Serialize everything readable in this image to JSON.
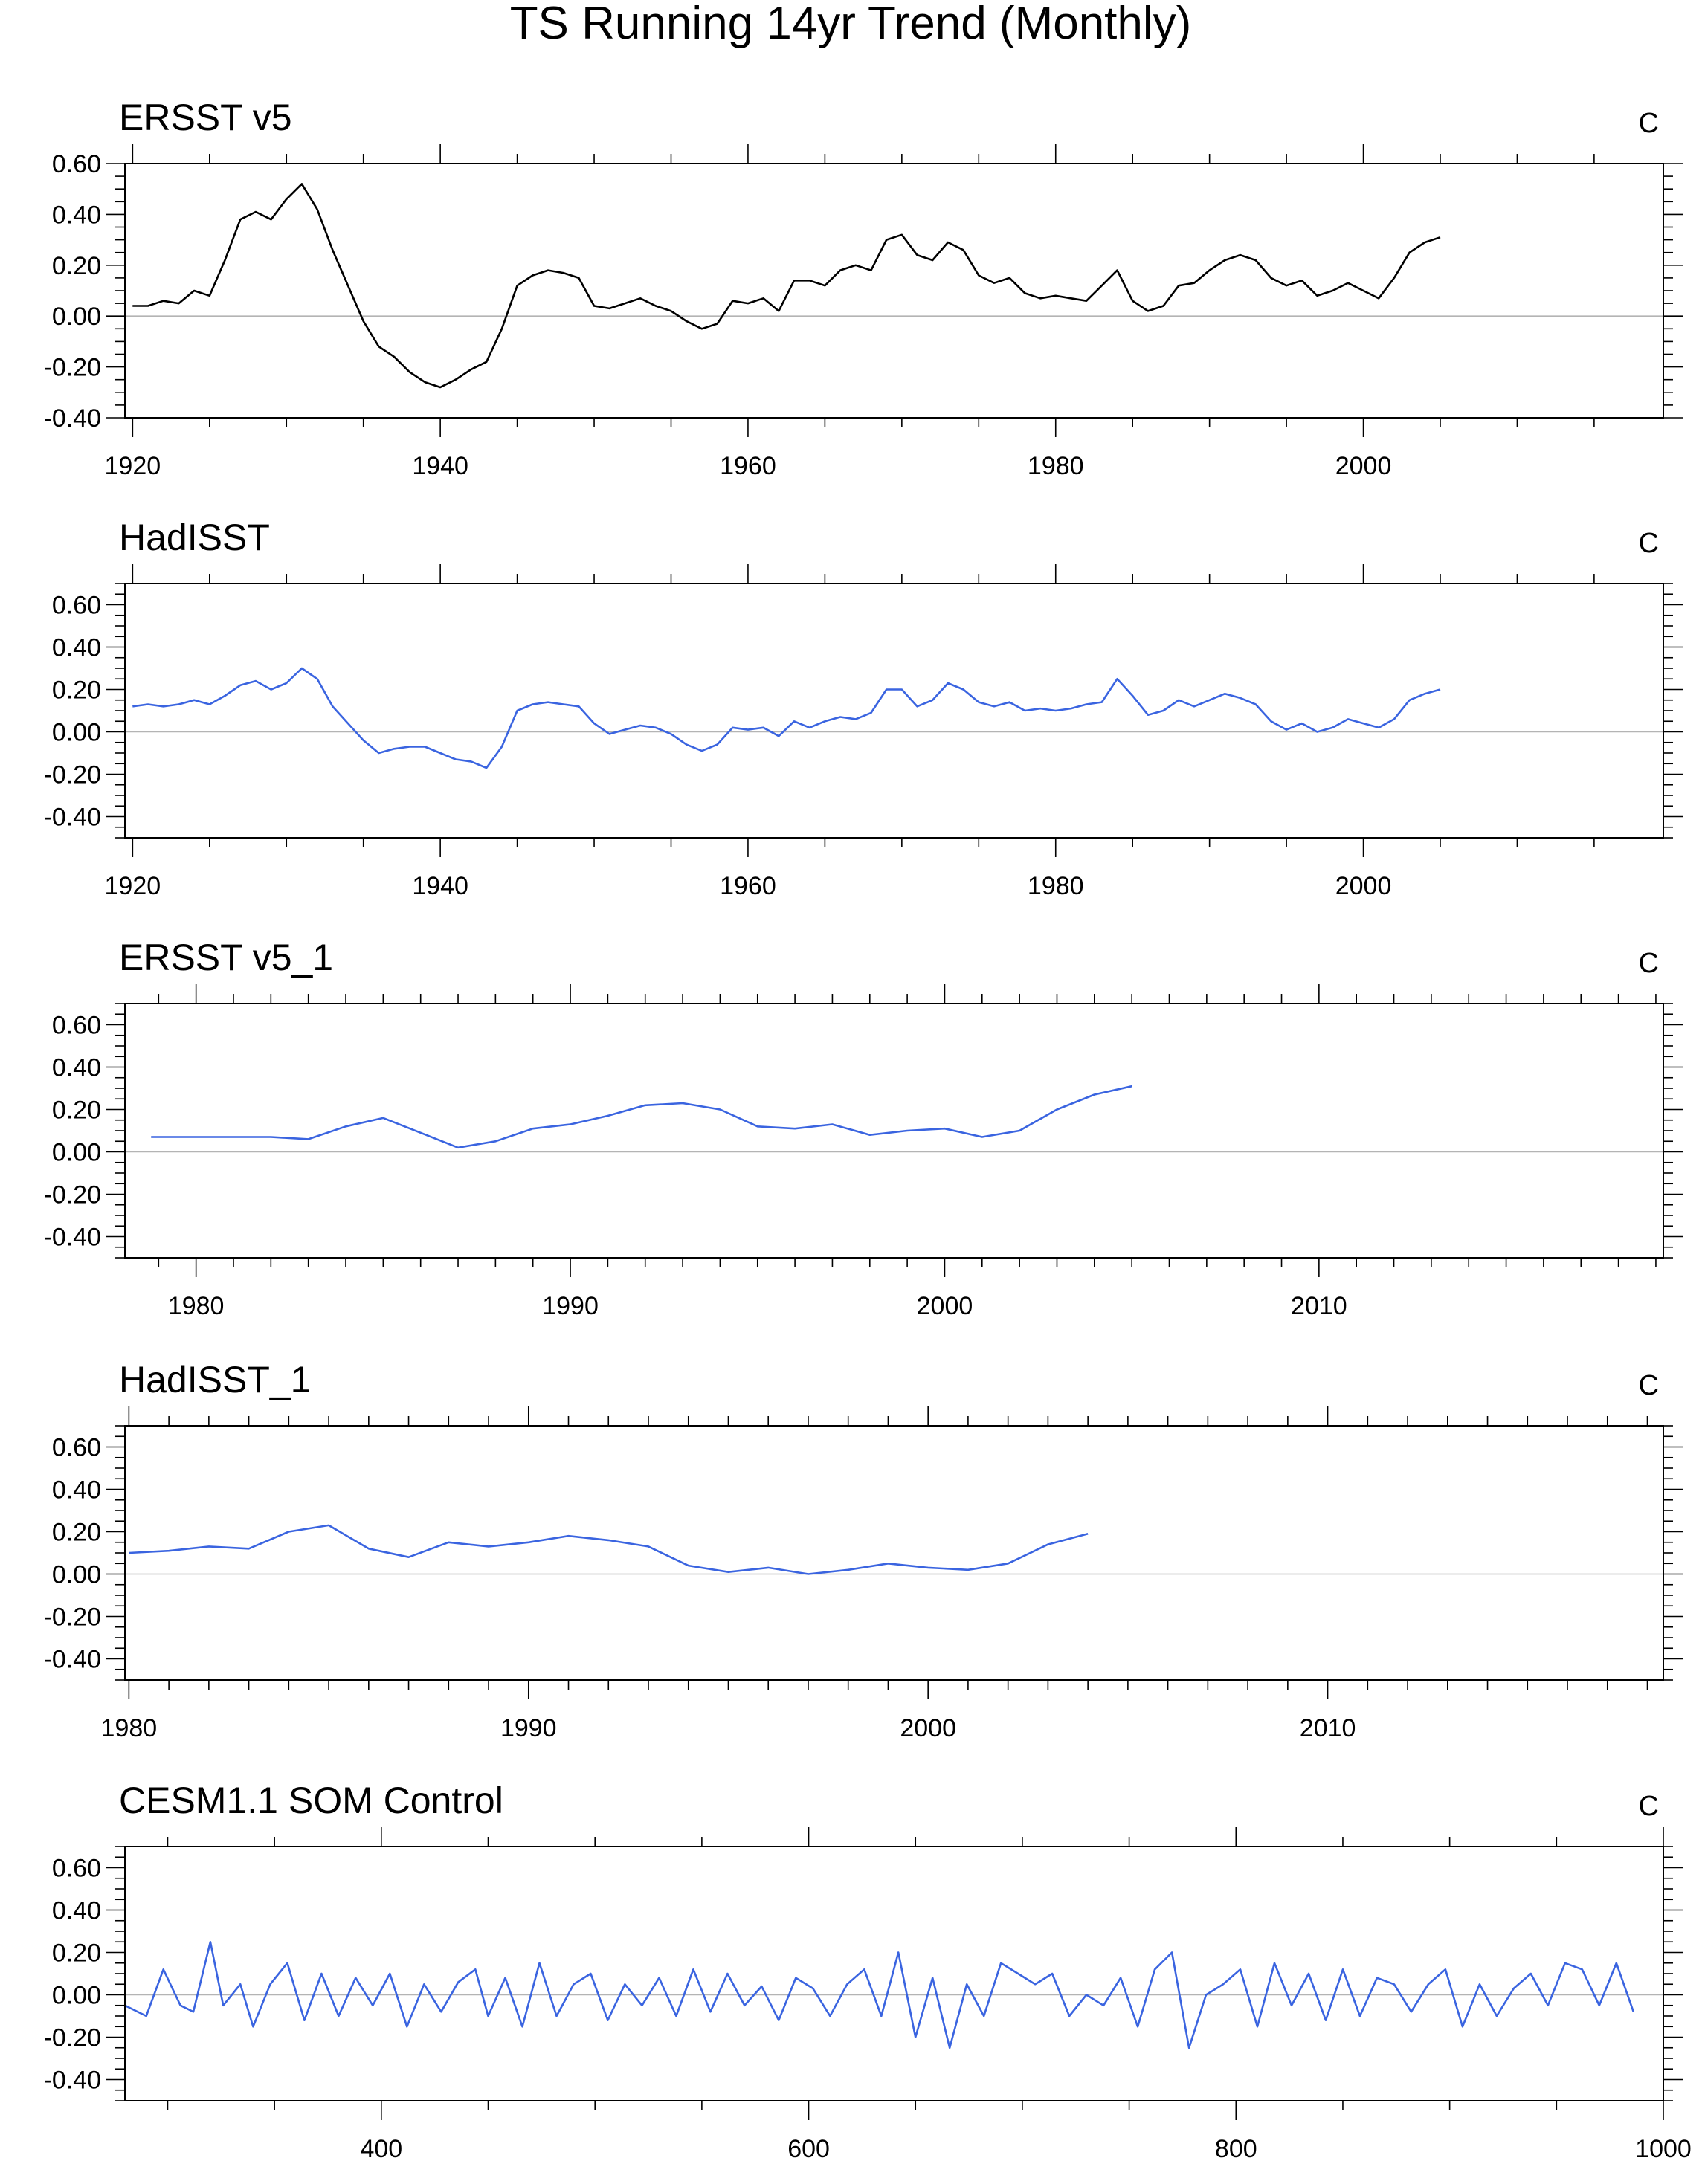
{
  "figure": {
    "title": "TS Running 14yr Trend (Monthly)"
  },
  "chart_data": [
    {
      "type": "line",
      "title": "ERSST v5",
      "units": "C",
      "color": "#000000",
      "xlim": [
        1919.5,
        2019.5
      ],
      "ylim": [
        -0.4,
        0.6
      ],
      "xticks": [
        1920,
        1940,
        1960,
        1980,
        2000
      ],
      "xtick_labels": [
        "1920",
        "1940",
        "1960",
        "1980",
        "2000"
      ],
      "xminor_step": 5,
      "yticks": [
        0.6,
        0.4,
        0.2,
        0.0,
        -0.2,
        -0.4
      ],
      "ytick_labels": [
        "0.60",
        "0.40",
        "0.20",
        "0.00",
        "-0.20",
        "-0.40"
      ],
      "series": [
        {
          "x": [
            1920,
            1921,
            1922,
            1923,
            1924,
            1925,
            1926,
            1927,
            1928,
            1929,
            1930,
            1931,
            1932,
            1933,
            1934,
            1935,
            1936,
            1937,
            1938,
            1939,
            1940,
            1941,
            1942,
            1943,
            1944,
            1945,
            1946,
            1947,
            1948,
            1949,
            1950,
            1951,
            1952,
            1953,
            1954,
            1955,
            1956,
            1957,
            1958,
            1959,
            1960,
            1961,
            1962,
            1963,
            1964,
            1965,
            1966,
            1967,
            1968,
            1969,
            1970,
            1971,
            1972,
            1973,
            1974,
            1975,
            1976,
            1977,
            1978,
            1979,
            1980,
            1981,
            1982,
            1983,
            1984,
            1985,
            1986,
            1987,
            1988,
            1989,
            1990,
            1991,
            1992,
            1993,
            1994,
            1995,
            1996,
            1997,
            1998,
            1999,
            2000,
            2001,
            2002,
            2003,
            2004,
            2005
          ],
          "y": [
            0.04,
            0.04,
            0.06,
            0.05,
            0.1,
            0.08,
            0.22,
            0.38,
            0.41,
            0.38,
            0.46,
            0.52,
            0.42,
            0.26,
            0.12,
            -0.02,
            -0.12,
            -0.16,
            -0.22,
            -0.26,
            -0.28,
            -0.25,
            -0.21,
            -0.18,
            -0.05,
            0.12,
            0.16,
            0.18,
            0.17,
            0.15,
            0.04,
            0.03,
            0.05,
            0.07,
            0.04,
            0.02,
            -0.02,
            -0.05,
            -0.03,
            0.06,
            0.05,
            0.07,
            0.02,
            0.14,
            0.14,
            0.12,
            0.18,
            0.2,
            0.18,
            0.3,
            0.32,
            0.24,
            0.22,
            0.29,
            0.26,
            0.16,
            0.13,
            0.15,
            0.09,
            0.07,
            0.08,
            0.07,
            0.06,
            0.12,
            0.18,
            0.06,
            0.02,
            0.04,
            0.12,
            0.13,
            0.18,
            0.22,
            0.24,
            0.22,
            0.15,
            0.12,
            0.14,
            0.08,
            0.1,
            0.13,
            0.1,
            0.07,
            0.15,
            0.25,
            0.29,
            0.31
          ]
        }
      ]
    },
    {
      "type": "line",
      "title": "HadISST",
      "units": "C",
      "color": "#3a64e0",
      "xlim": [
        1919.5,
        2019.5
      ],
      "ylim": [
        -0.5,
        0.7
      ],
      "xticks": [
        1920,
        1940,
        1960,
        1980,
        2000
      ],
      "xtick_labels": [
        "1920",
        "1940",
        "1960",
        "1980",
        "2000"
      ],
      "xminor_step": 5,
      "yticks": [
        0.6,
        0.4,
        0.2,
        0.0,
        -0.2,
        -0.4
      ],
      "ytick_labels": [
        "0.60",
        "0.40",
        "0.20",
        "0.00",
        "-0.20",
        "-0.40"
      ],
      "series": [
        {
          "x": [
            1920,
            1921,
            1922,
            1923,
            1924,
            1925,
            1926,
            1927,
            1928,
            1929,
            1930,
            1931,
            1932,
            1933,
            1934,
            1935,
            1936,
            1937,
            1938,
            1939,
            1940,
            1941,
            1942,
            1943,
            1944,
            1945,
            1946,
            1947,
            1948,
            1949,
            1950,
            1951,
            1952,
            1953,
            1954,
            1955,
            1956,
            1957,
            1958,
            1959,
            1960,
            1961,
            1962,
            1963,
            1964,
            1965,
            1966,
            1967,
            1968,
            1969,
            1970,
            1971,
            1972,
            1973,
            1974,
            1975,
            1976,
            1977,
            1978,
            1979,
            1980,
            1981,
            1982,
            1983,
            1984,
            1985,
            1986,
            1987,
            1988,
            1989,
            1990,
            1991,
            1992,
            1993,
            1994,
            1995,
            1996,
            1997,
            1998,
            1999,
            2000,
            2001,
            2002,
            2003,
            2004,
            2005
          ],
          "y": [
            0.12,
            0.13,
            0.12,
            0.13,
            0.15,
            0.13,
            0.17,
            0.22,
            0.24,
            0.2,
            0.23,
            0.3,
            0.25,
            0.12,
            0.04,
            -0.04,
            -0.1,
            -0.08,
            -0.07,
            -0.07,
            -0.1,
            -0.13,
            -0.14,
            -0.17,
            -0.07,
            0.1,
            0.13,
            0.14,
            0.13,
            0.12,
            0.04,
            -0.01,
            0.01,
            0.03,
            0.02,
            -0.01,
            -0.06,
            -0.09,
            -0.06,
            0.02,
            0.01,
            0.02,
            -0.02,
            0.05,
            0.02,
            0.05,
            0.07,
            0.06,
            0.09,
            0.2,
            0.2,
            0.12,
            0.15,
            0.23,
            0.2,
            0.14,
            0.12,
            0.14,
            0.1,
            0.11,
            0.1,
            0.11,
            0.13,
            0.14,
            0.25,
            0.17,
            0.08,
            0.1,
            0.15,
            0.12,
            0.15,
            0.18,
            0.16,
            0.13,
            0.05,
            0.01,
            0.04,
            0.0,
            0.02,
            0.06,
            0.04,
            0.02,
            0.06,
            0.15,
            0.18,
            0.2
          ]
        }
      ]
    },
    {
      "type": "line",
      "title": "ERSST v5_1",
      "units": "C",
      "color": "#3a64e0",
      "xlim": [
        1978.1,
        2019.2
      ],
      "ylim": [
        -0.5,
        0.7
      ],
      "xticks": [
        1980,
        1990,
        2000,
        2010
      ],
      "xtick_labels": [
        "1980",
        "1990",
        "2000",
        "2010"
      ],
      "xminor_step": 1,
      "yticks": [
        0.6,
        0.4,
        0.2,
        0.0,
        -0.2,
        -0.4
      ],
      "ytick_labels": [
        "0.60",
        "0.40",
        "0.20",
        "0.00",
        "-0.20",
        "-0.40"
      ],
      "series": [
        {
          "x": [
            1978.8,
            1980,
            1981,
            1982,
            1983,
            1984,
            1985,
            1986,
            1987,
            1988,
            1989,
            1990,
            1991,
            1992,
            1993,
            1994,
            1995,
            1996,
            1997,
            1998,
            1999,
            2000,
            2001,
            2002,
            2003,
            2004,
            2005
          ],
          "y": [
            0.07,
            0.07,
            0.07,
            0.07,
            0.06,
            0.12,
            0.16,
            0.09,
            0.02,
            0.05,
            0.11,
            0.13,
            0.17,
            0.22,
            0.23,
            0.2,
            0.12,
            0.11,
            0.13,
            0.08,
            0.1,
            0.11,
            0.07,
            0.1,
            0.2,
            0.27,
            0.31
          ]
        }
      ]
    },
    {
      "type": "line",
      "title": "HadISST_1",
      "units": "C",
      "color": "#3a64e0",
      "xlim": [
        1979.9,
        2018.4
      ],
      "ylim": [
        -0.5,
        0.7
      ],
      "xticks": [
        1980,
        1990,
        2000,
        2010
      ],
      "xtick_labels": [
        "1980",
        "1990",
        "2000",
        "2010"
      ],
      "xminor_step": 1,
      "yticks": [
        0.6,
        0.4,
        0.2,
        0.0,
        -0.2,
        -0.4
      ],
      "ytick_labels": [
        "0.60",
        "0.40",
        "0.20",
        "0.00",
        "-0.20",
        "-0.40"
      ],
      "series": [
        {
          "x": [
            1980,
            1981,
            1982,
            1983,
            1984,
            1985,
            1986,
            1987,
            1988,
            1989,
            1990,
            1991,
            1992,
            1993,
            1994,
            1995,
            1996,
            1997,
            1998,
            1999,
            2000,
            2001,
            2002,
            2003,
            2004
          ],
          "y": [
            0.1,
            0.11,
            0.13,
            0.12,
            0.2,
            0.23,
            0.12,
            0.08,
            0.15,
            0.13,
            0.15,
            0.18,
            0.16,
            0.13,
            0.04,
            0.01,
            0.03,
            0.0,
            0.02,
            0.05,
            0.03,
            0.02,
            0.05,
            0.14,
            0.19
          ]
        }
      ]
    },
    {
      "type": "line",
      "title": "CESM1.1 SOM Control",
      "units": "C",
      "color": "#3a64e0",
      "xlim": [
        280,
        1000
      ],
      "ylim": [
        -0.5,
        0.7
      ],
      "xticks": [
        400,
        600,
        800,
        1000
      ],
      "xtick_labels": [
        "400",
        "600",
        "800",
        "1000"
      ],
      "xminor_step": 50,
      "yticks": [
        0.6,
        0.4,
        0.2,
        0.0,
        -0.2,
        -0.4
      ],
      "ytick_labels": [
        "0.60",
        "0.40",
        "0.20",
        "0.00",
        "-0.20",
        "-0.40"
      ],
      "series": [
        {
          "x": [
            280,
            290,
            298,
            306,
            312,
            320,
            326,
            334,
            340,
            348,
            356,
            364,
            372,
            380,
            388,
            396,
            404,
            412,
            420,
            428,
            436,
            444,
            450,
            458,
            466,
            474,
            482,
            490,
            498,
            506,
            514,
            522,
            530,
            538,
            546,
            554,
            562,
            570,
            578,
            586,
            594,
            602,
            610,
            618,
            626,
            634,
            642,
            650,
            658,
            666,
            674,
            682,
            690,
            698,
            706,
            714,
            722,
            730,
            738,
            746,
            754,
            762,
            770,
            778,
            786,
            794,
            802,
            810,
            818,
            826,
            834,
            842,
            850,
            858,
            866,
            874,
            882,
            890,
            898,
            906,
            914,
            922,
            930,
            938,
            946,
            954,
            962,
            970,
            978,
            986
          ],
          "y": [
            -0.05,
            -0.1,
            0.12,
            -0.05,
            -0.08,
            0.25,
            -0.05,
            0.05,
            -0.15,
            0.05,
            0.15,
            -0.12,
            0.1,
            -0.1,
            0.08,
            -0.05,
            0.1,
            -0.15,
            0.05,
            -0.08,
            0.06,
            0.12,
            -0.1,
            0.08,
            -0.15,
            0.15,
            -0.1,
            0.05,
            0.1,
            -0.12,
            0.05,
            -0.05,
            0.08,
            -0.1,
            0.12,
            -0.08,
            0.1,
            -0.05,
            0.04,
            -0.12,
            0.08,
            0.03,
            -0.1,
            0.05,
            0.12,
            -0.1,
            0.2,
            -0.2,
            0.08,
            -0.25,
            0.05,
            -0.1,
            0.15,
            0.1,
            0.05,
            0.1,
            -0.1,
            0.0,
            -0.05,
            0.08,
            -0.15,
            0.12,
            0.2,
            -0.25,
            0.0,
            0.05,
            0.12,
            -0.15,
            0.15,
            -0.05,
            0.1,
            -0.12,
            0.12,
            -0.1,
            0.08,
            0.05,
            -0.08,
            0.05,
            0.12,
            -0.15,
            0.05,
            -0.1,
            0.03,
            0.1,
            -0.05,
            0.15,
            0.12,
            -0.05,
            0.15,
            -0.08
          ]
        }
      ]
    }
  ]
}
